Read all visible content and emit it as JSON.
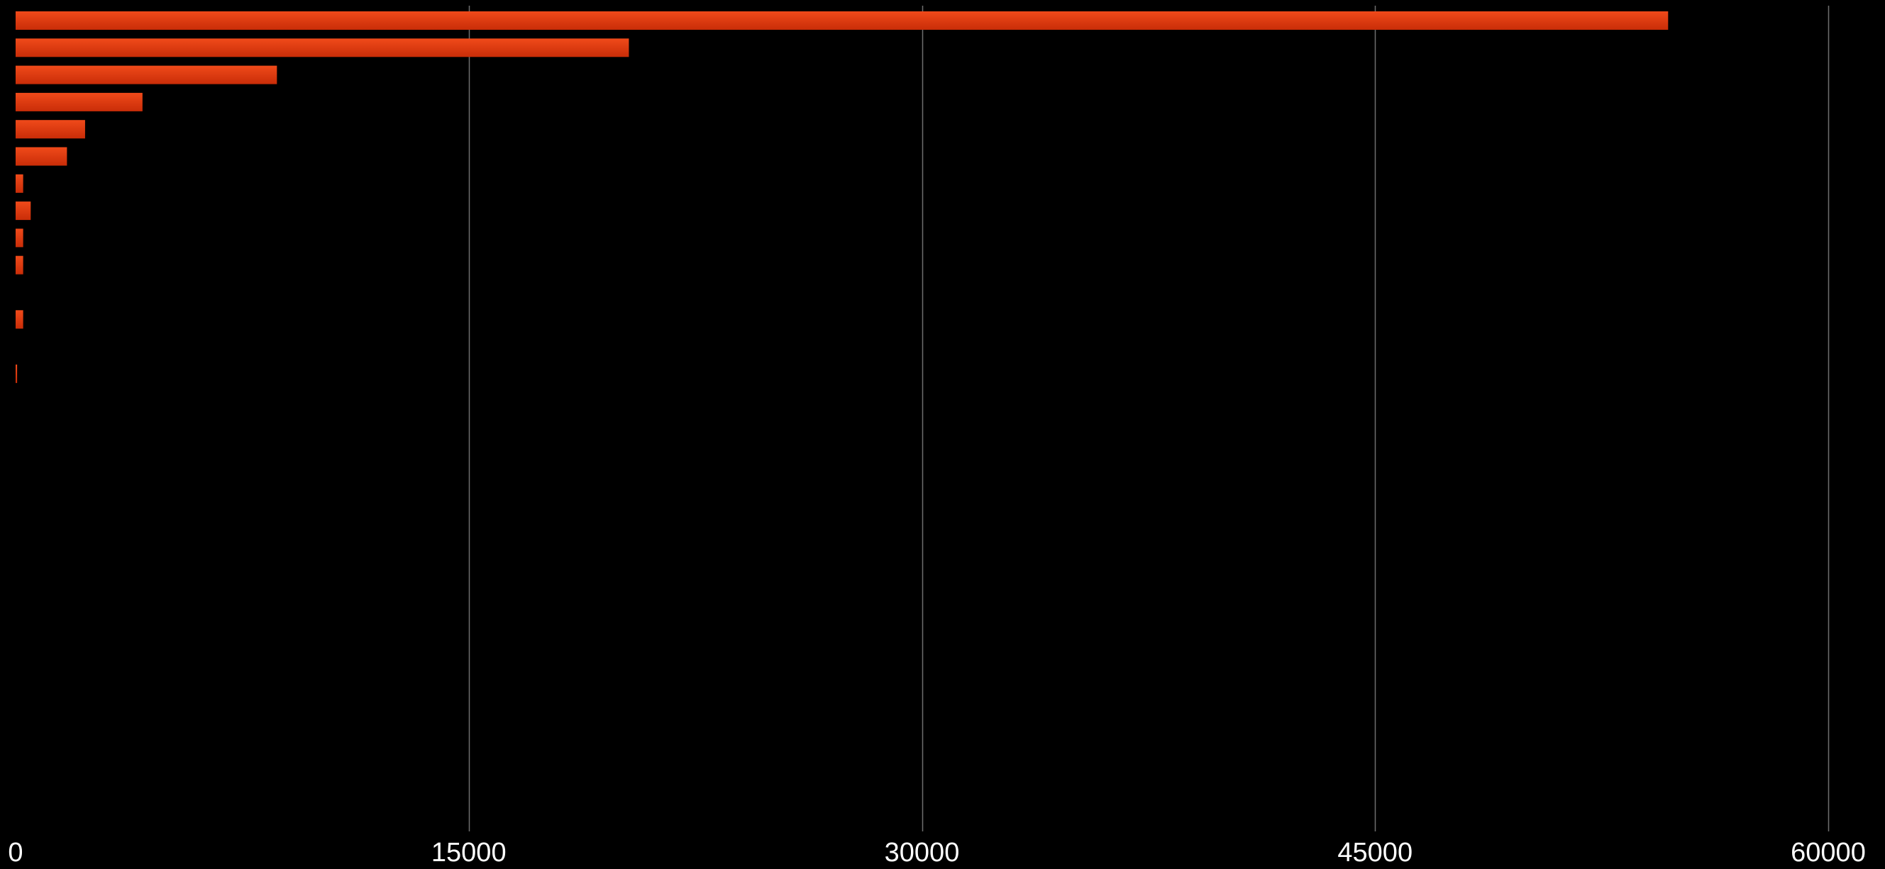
{
  "chart_data": {
    "type": "bar",
    "orientation": "horizontal",
    "title": "",
    "xlabel": "",
    "ylabel": "",
    "categories": [
      "",
      "",
      "",
      "",
      "",
      "",
      "",
      "",
      "",
      "",
      "",
      "",
      "",
      "",
      ""
    ],
    "values": [
      54700,
      20300,
      8650,
      4200,
      2300,
      1700,
      250,
      500,
      250,
      250,
      0,
      250,
      0,
      50,
      0
    ],
    "xlim": [
      0,
      60000
    ],
    "ticks": [
      0,
      15000,
      30000,
      45000,
      60000
    ],
    "tick_labels": [
      "0",
      "15000",
      "30000",
      "45000",
      "60000"
    ],
    "grid": "vertical",
    "bar_color": "#e8380f",
    "bar_color_light": "#f04a1a",
    "bar_color_dark": "#c92d08",
    "background": "#000000",
    "grid_color": "#6e6e6e",
    "label_color": "#ffffff"
  }
}
